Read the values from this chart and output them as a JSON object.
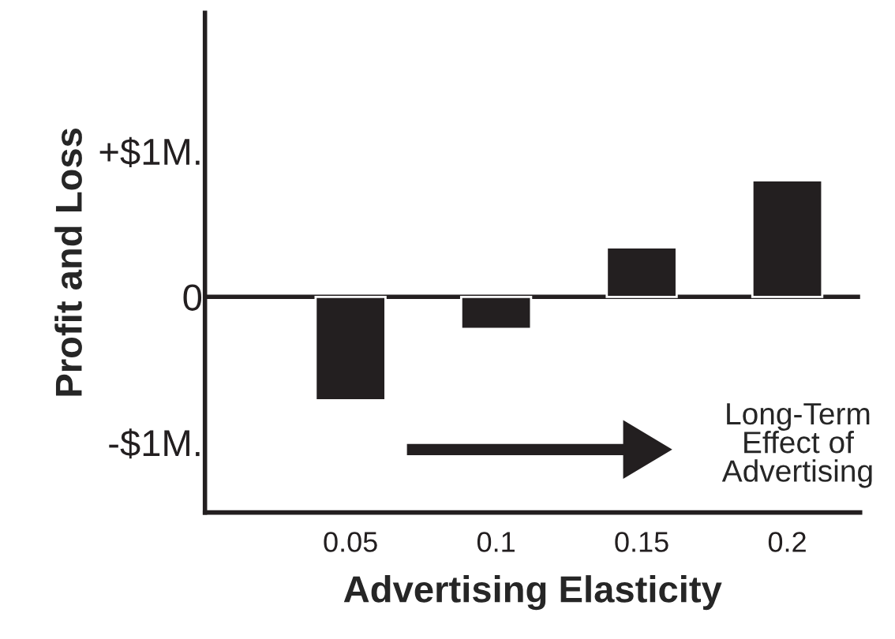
{
  "chart_data": {
    "type": "bar",
    "xlabel": "Advertising Elasticity",
    "ylabel": "Profit and Loss",
    "categories": [
      "0.05",
      "0.1",
      "0.15",
      "0.2"
    ],
    "values": [
      -0.71,
      -0.22,
      0.34,
      0.8
    ],
    "color": "#231f20",
    "ylim": [
      -1.48,
      1.95
    ],
    "yticks": [
      {
        "value": -1,
        "label": "-$1M."
      },
      0,
      {
        "value": 1,
        "label": "+$1M."
      }
    ],
    "ref_lines": [
      {
        "axis": "y",
        "value": 0,
        "color": "#231f20"
      }
    ],
    "annotations": [
      "Long-Term\nEffect of\nAdvertising"
    ],
    "grid": false,
    "legend": false
  }
}
